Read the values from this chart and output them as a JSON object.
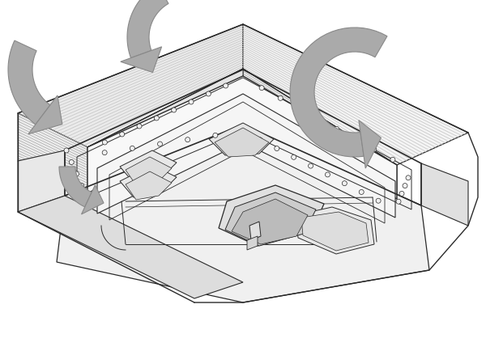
{
  "background_color": "#ffffff",
  "line_color": "#2a2a2a",
  "arrow_fill": "#aaaaaa",
  "arrow_edge": "#888888",
  "panel_light": "#f5f5f5",
  "panel_mid": "#ebebeb",
  "panel_dark": "#e0e0e0",
  "stripe_color": "#c8c8c8",
  "figsize": [
    6.0,
    4.34
  ],
  "dpi": 100
}
